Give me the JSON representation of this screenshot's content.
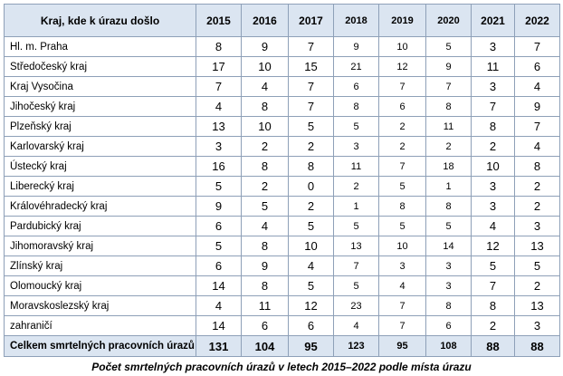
{
  "table": {
    "header": [
      "Kraj, kde k úrazu došlo",
      "2015",
      "2016",
      "2017",
      "2018",
      "2019",
      "2020",
      "2021",
      "2022"
    ],
    "rows": [
      [
        "Hl. m. Praha",
        8,
        9,
        7,
        9,
        10,
        5,
        3,
        7
      ],
      [
        "Středočeský kraj",
        17,
        10,
        15,
        21,
        12,
        9,
        11,
        6
      ],
      [
        "Kraj Vysočina",
        7,
        4,
        7,
        6,
        7,
        7,
        3,
        4
      ],
      [
        "Jihočeský kraj",
        4,
        8,
        7,
        8,
        6,
        8,
        7,
        9
      ],
      [
        "Plzeňský kraj",
        13,
        10,
        5,
        5,
        2,
        11,
        8,
        7
      ],
      [
        "Karlovarský kraj",
        3,
        2,
        2,
        3,
        2,
        2,
        2,
        4
      ],
      [
        "Ústecký kraj",
        16,
        8,
        8,
        11,
        7,
        18,
        10,
        8
      ],
      [
        "Liberecký kraj",
        5,
        2,
        0,
        2,
        5,
        1,
        3,
        2
      ],
      [
        "Královéhradecký kraj",
        9,
        5,
        2,
        1,
        8,
        8,
        3,
        2
      ],
      [
        "Pardubický kraj",
        6,
        4,
        5,
        5,
        5,
        5,
        4,
        3
      ],
      [
        "Jihomoravský kraj",
        5,
        8,
        10,
        13,
        10,
        14,
        12,
        13
      ],
      [
        "Zlínský kraj",
        6,
        9,
        4,
        7,
        3,
        3,
        5,
        5
      ],
      [
        "Olomoucký kraj",
        14,
        8,
        5,
        5,
        4,
        3,
        7,
        2
      ],
      [
        "Moravskoslezský kraj",
        4,
        11,
        12,
        23,
        7,
        8,
        8,
        13
      ],
      [
        "zahraničí",
        14,
        6,
        6,
        4,
        7,
        6,
        2,
        3
      ]
    ],
    "total": [
      "Celkem smrtelných pracovních úrazů",
      131,
      104,
      95,
      123,
      95,
      108,
      88,
      88
    ],
    "caption": "Počet smrtelných pracovních úrazů v letech 2015–2022 podle místa úrazu"
  }
}
